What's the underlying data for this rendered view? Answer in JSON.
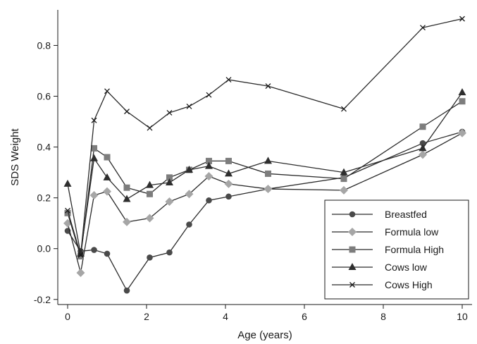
{
  "chart_data": {
    "type": "line",
    "xlabel": "Age (years)",
    "ylabel": "SDS Weight",
    "xlim": [
      -0.25,
      10.25
    ],
    "ylim": [
      -0.22,
      0.94
    ],
    "xticks": [
      0,
      2,
      4,
      6,
      8,
      10
    ],
    "yticks": [
      -0.2,
      0.0,
      0.2,
      0.4,
      0.6,
      0.8
    ],
    "ytick_labels": [
      "-0.2",
      "0.0",
      "0.2",
      "0.4",
      "0.6",
      "0.8"
    ],
    "grid": false,
    "legend_position": "bottom-right",
    "line_color": "#2b2b2b",
    "series": [
      {
        "name": "Breastfed",
        "marker": "circle",
        "color": "#4a4a4a",
        "x": [
          0,
          0.33,
          0.67,
          1,
          1.5,
          2.08,
          2.58,
          3.08,
          3.58,
          4.08,
          5.08,
          7,
          9,
          10
        ],
        "y": [
          0.07,
          -0.01,
          -0.005,
          -0.02,
          -0.165,
          -0.035,
          -0.015,
          0.095,
          0.19,
          0.205,
          0.235,
          0.28,
          0.415,
          0.46
        ]
      },
      {
        "name": "Formula low",
        "marker": "diamond",
        "color": "#a6a6a6",
        "x": [
          0,
          0.33,
          0.67,
          1,
          1.5,
          2.08,
          2.58,
          3.08,
          3.58,
          4.08,
          5.08,
          7,
          9,
          10
        ],
        "y": [
          0.1,
          -0.095,
          0.21,
          0.225,
          0.105,
          0.12,
          0.185,
          0.215,
          0.285,
          0.255,
          0.235,
          0.23,
          0.37,
          0.455
        ]
      },
      {
        "name": "Formula High",
        "marker": "square",
        "color": "#7d7d7d",
        "x": [
          0,
          0.33,
          0.67,
          1,
          1.5,
          2.08,
          2.58,
          3.08,
          3.58,
          4.08,
          5.08,
          7,
          9,
          10
        ],
        "y": [
          0.14,
          -0.03,
          0.395,
          0.36,
          0.24,
          0.215,
          0.28,
          0.31,
          0.345,
          0.345,
          0.295,
          0.275,
          0.48,
          0.58
        ]
      },
      {
        "name": "Cows low",
        "marker": "triangle",
        "color": "#2e2e2e",
        "x": [
          0,
          0.33,
          0.67,
          1,
          1.5,
          2.08,
          2.58,
          3.08,
          3.58,
          4.08,
          5.08,
          7,
          9,
          10
        ],
        "y": [
          0.255,
          -0.02,
          0.355,
          0.28,
          0.195,
          0.25,
          0.26,
          0.31,
          0.325,
          0.295,
          0.345,
          0.3,
          0.395,
          0.615
        ]
      },
      {
        "name": "Cows High",
        "marker": "x",
        "color": "#1a1a1a",
        "x": [
          0,
          0.33,
          0.67,
          1,
          1.5,
          2.08,
          2.58,
          3.08,
          3.58,
          4.08,
          5.08,
          7,
          9,
          10
        ],
        "y": [
          0.15,
          -0.025,
          0.505,
          0.62,
          0.54,
          0.475,
          0.535,
          0.56,
          0.605,
          0.665,
          0.64,
          0.55,
          0.87,
          0.905
        ]
      }
    ]
  }
}
